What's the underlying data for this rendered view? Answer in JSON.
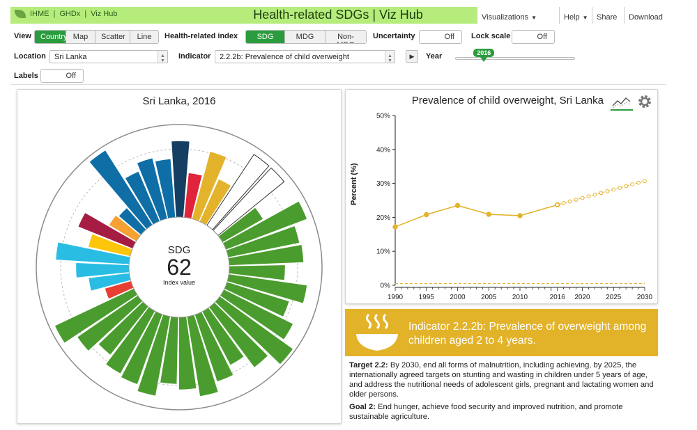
{
  "header": {
    "brand_links": [
      "IHME",
      "GHDx",
      "Viz Hub"
    ],
    "app_title": "Health-related SDGs | Viz Hub",
    "menu": {
      "visualizations": "Visualizations",
      "help": "Help",
      "share": "Share",
      "download": "Download"
    }
  },
  "controls": {
    "view_label": "View",
    "view_options": [
      "Country",
      "Map",
      "Scatter",
      "Line"
    ],
    "view_selected": "Country",
    "index_label": "Health-related index",
    "index_options": [
      "SDG",
      "MDG",
      "Non-MDG"
    ],
    "index_selected": "SDG",
    "uncertainty_label": "Uncertainty",
    "uncertainty_value": "Off",
    "lock_scale_label": "Lock scale",
    "lock_scale_value": "Off",
    "location_label": "Location",
    "location_value": "Sri Lanka",
    "indicator_label": "Indicator",
    "indicator_value": "2.2.2b: Prevalence of child overweight",
    "year_label": "Year",
    "year_value": "2016",
    "year_fraction": 0.24,
    "labels_label": "Labels",
    "labels_value": "Off"
  },
  "left_panel": {
    "title": "Sri Lanka, 2016",
    "center_label": "SDG",
    "center_value": "62",
    "center_caption": "Index value"
  },
  "radial_bars": {
    "colors": {
      "blue": "#0f6ea6",
      "navy": "#143f63",
      "red": "#e0243b",
      "gold": "#e4b32c",
      "green": "#4b9c2e",
      "orange": "#f6a131",
      "maroon": "#a61d43",
      "yellow": "#fcc60c",
      "cyan": "#29bde3",
      "darkred": "#e83f32",
      "empty": "#ffffff"
    },
    "bars": [
      {
        "v": 0.82,
        "c": "navy"
      },
      {
        "v": 0.48,
        "c": "red"
      },
      {
        "v": 0.75,
        "c": "gold"
      },
      {
        "v": 0.5,
        "c": "gold"
      },
      {
        "v": 0.92,
        "c": "empty"
      },
      {
        "v": 0.92,
        "c": "empty"
      },
      {
        "v": 0.5,
        "c": "green"
      },
      {
        "v": 0.93,
        "c": "green"
      },
      {
        "v": 0.78,
        "c": "green"
      },
      {
        "v": 0.8,
        "c": "green"
      },
      {
        "v": 0.6,
        "c": "green"
      },
      {
        "v": 0.85,
        "c": "green"
      },
      {
        "v": 0.7,
        "c": "green"
      },
      {
        "v": 0.83,
        "c": "green"
      },
      {
        "v": 0.97,
        "c": "green"
      },
      {
        "v": 0.81,
        "c": "green"
      },
      {
        "v": 0.65,
        "c": "green"
      },
      {
        "v": 0.76,
        "c": "green"
      },
      {
        "v": 0.87,
        "c": "green"
      },
      {
        "v": 0.78,
        "c": "green"
      },
      {
        "v": 0.72,
        "c": "green"
      },
      {
        "v": 0.87,
        "c": "green"
      },
      {
        "v": 0.8,
        "c": "green"
      },
      {
        "v": 0.77,
        "c": "green"
      },
      {
        "v": 0.66,
        "c": "green"
      },
      {
        "v": 0.79,
        "c": "green"
      },
      {
        "v": 0.94,
        "c": "green"
      },
      {
        "v": 0.29,
        "c": "darkred"
      },
      {
        "v": 0.44,
        "c": "cyan"
      },
      {
        "v": 0.57,
        "c": "cyan"
      },
      {
        "v": 0.79,
        "c": "cyan"
      },
      {
        "v": 0.46,
        "c": "yellow"
      },
      {
        "v": 0.63,
        "c": "maroon"
      },
      {
        "v": 0.34,
        "c": "orange"
      },
      {
        "v": 0.31,
        "c": "blue"
      },
      {
        "v": 0.95,
        "c": "blue"
      },
      {
        "v": 0.58,
        "c": "blue"
      },
      {
        "v": 0.67,
        "c": "blue"
      },
      {
        "v": 0.63,
        "c": "blue"
      }
    ]
  },
  "chart_data": {
    "type": "line",
    "title": "Prevalence of child overweight, Sri Lanka",
    "xlabel": "",
    "ylabel": "Percent (%)",
    "xlim": [
      1990,
      2030
    ],
    "ylim": [
      0,
      50
    ],
    "x_ticks": [
      "1990",
      "1995",
      "2000",
      "2005",
      "2010",
      "2016",
      "2020",
      "2025",
      "2030"
    ],
    "y_ticks": [
      "0%",
      "10%",
      "20%",
      "30%",
      "40%",
      "50%"
    ],
    "series": [
      {
        "style": "solid",
        "x": [
          1990,
          1995,
          2000,
          2005,
          2010,
          2016
        ],
        "y": [
          17.2,
          20.8,
          23.5,
          20.9,
          20.5,
          23.7
        ]
      },
      {
        "style": "dotted",
        "x": [
          2016,
          2017,
          2018,
          2019,
          2020,
          2021,
          2022,
          2023,
          2024,
          2025,
          2026,
          2027,
          2028,
          2029,
          2030
        ],
        "y": [
          23.7,
          24.2,
          24.7,
          25.2,
          25.7,
          26.2,
          26.7,
          27.2,
          27.7,
          28.2,
          28.7,
          29.2,
          29.7,
          30.2,
          30.7
        ]
      }
    ],
    "target_line_y": 0.5,
    "color": "#e4b32c"
  },
  "info": {
    "indicator_title": "Indicator 2.2.2b: Prevalence of overweight among children aged 2 to 4 years.",
    "target_label": "Target 2.2:",
    "target_text": "By 2030, end all forms of malnutrition, including achieving, by 2025, the internationally agreed targets on stunting and wasting in children under 5 years of age, and address the nutritional needs of adolescent girls, pregnant and lactating women and older persons.",
    "goal_label": "Goal 2:",
    "goal_text": "End hunger, achieve food security and improved nutrition, and promote sustainable agriculture.",
    "icon": "bowl-icon"
  }
}
